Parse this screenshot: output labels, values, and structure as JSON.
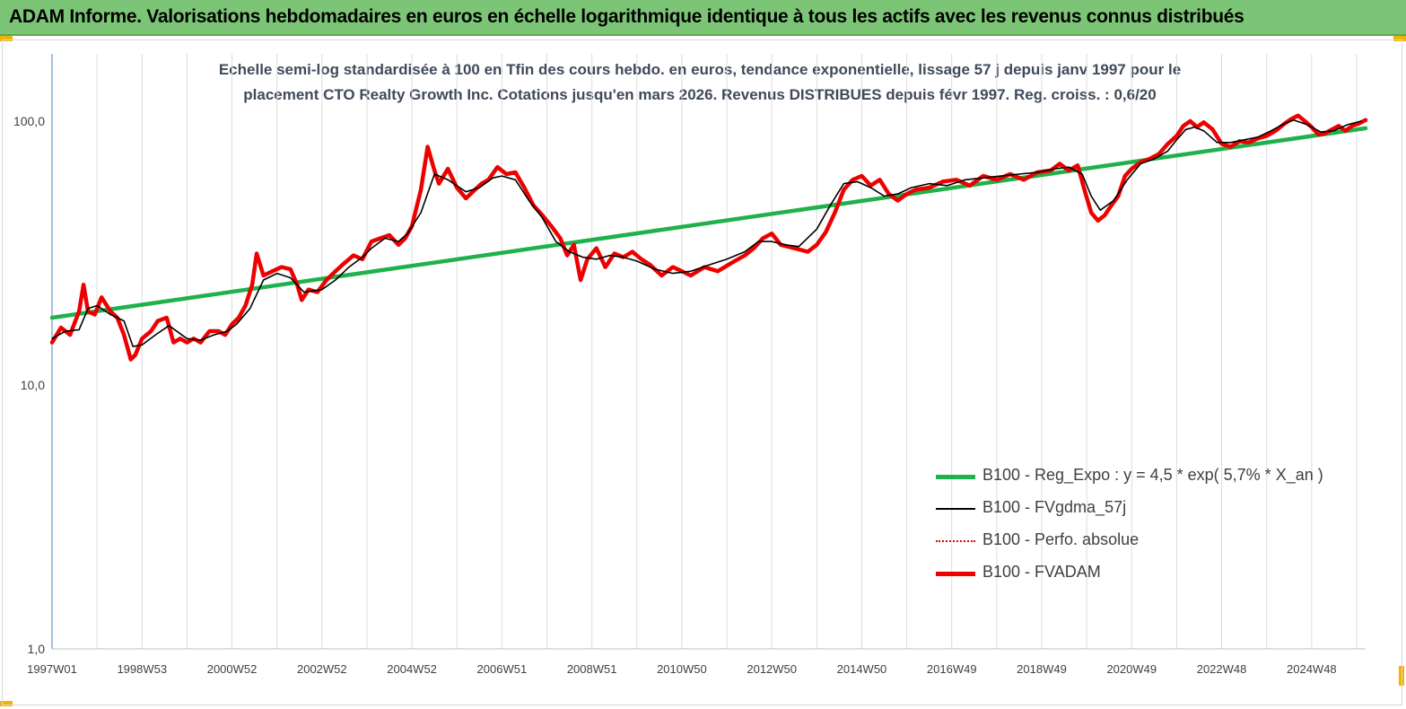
{
  "banner": {
    "title": "ADAM Informe. Valorisations hebdomadaires en euros en échelle logarithmique identique à tous les actifs avec les revenus connus distribués"
  },
  "chart_data": {
    "type": "line",
    "title_line1": "Echelle semi-log standardisée à 100 en Tfin des cours hebdo. en euros, tendance exponentielle, lissage 57 j depuis janv 1997 pour le",
    "title_line2": "placement CTO Realty Growth Inc. Cotations jusqu'en mars 2026. Revenus DISTRIBUES depuis févr 1997. Reg. croiss. : 0,6/20",
    "y_scale": "log",
    "ylim": [
      1,
      180
    ],
    "y_ticks": [
      1,
      10,
      100
    ],
    "y_tick_labels": [
      "1,0",
      "10,0",
      "100,0"
    ],
    "xlim": [
      1997.0,
      2026.2
    ],
    "x_tick_years": [
      1997.0,
      1999.0,
      2001.0,
      2003.0,
      2005.0,
      2007.0,
      2009.0,
      2011.0,
      2013.0,
      2015.0,
      2017.0,
      2019.0,
      2021.0,
      2023.0,
      2025.0
    ],
    "x_tick_labels": [
      "1997W01",
      "1998W53",
      "2000W52",
      "2002W52",
      "2004W52",
      "2006W51",
      "2008W51",
      "2010W50",
      "2012W50",
      "2014W50",
      "2016W49",
      "2018W49",
      "2020W49",
      "2022W48",
      "2024W48"
    ],
    "grid": "vertical",
    "legend_position": "bottom-right",
    "series": [
      {
        "name": "B100 - Reg_Expo : y = 4,5 * exp( 5,7% * X_an )",
        "color": "#1fb14b",
        "style": "thick",
        "x": [
          1997.0,
          2026.2
        ],
        "y": [
          18.0,
          94.0
        ]
      },
      {
        "name": "B100 - FVgdma_57j",
        "color": "#000000",
        "style": "thin",
        "x": [
          1997.0,
          1997.3,
          1997.6,
          1997.8,
          1998.0,
          1998.3,
          1998.6,
          1998.8,
          1999.0,
          1999.3,
          1999.6,
          2000.0,
          2000.3,
          2000.6,
          2000.9,
          2001.1,
          2001.4,
          2001.7,
          2002.0,
          2002.3,
          2002.6,
          2003.0,
          2003.3,
          2003.6,
          2003.9,
          2004.1,
          2004.4,
          2004.7,
          2004.9,
          2005.2,
          2005.5,
          2005.8,
          2006.2,
          2006.5,
          2006.8,
          2007.0,
          2007.3,
          2007.6,
          2007.9,
          2008.2,
          2008.5,
          2008.8,
          2009.1,
          2009.4,
          2009.7,
          2010.0,
          2010.4,
          2010.8,
          2011.2,
          2011.6,
          2012.0,
          2012.4,
          2012.7,
          2013.0,
          2013.3,
          2013.6,
          2014.0,
          2014.3,
          2014.6,
          2014.9,
          2015.2,
          2015.5,
          2015.8,
          2016.1,
          2016.5,
          2016.9,
          2017.3,
          2017.7,
          2018.1,
          2018.5,
          2018.9,
          2019.3,
          2019.6,
          2019.9,
          2020.1,
          2020.3,
          2020.6,
          2020.9,
          2021.2,
          2021.5,
          2021.8,
          2022.0,
          2022.2,
          2022.4,
          2022.6,
          2022.9,
          2023.2,
          2023.5,
          2023.8,
          2024.1,
          2024.4,
          2024.6,
          2024.9,
          2025.2,
          2025.5,
          2025.8,
          2026.1
        ],
        "y": [
          15.0,
          16.0,
          16.2,
          19.5,
          20.0,
          18.5,
          17.5,
          14.0,
          14.2,
          15.5,
          16.8,
          15.0,
          14.8,
          15.5,
          16.0,
          17.0,
          19.5,
          25.0,
          26.5,
          25.5,
          22.5,
          23.0,
          25.0,
          28.0,
          30.5,
          33.0,
          36.0,
          35.0,
          37.5,
          45.0,
          63.0,
          60.0,
          54.0,
          56.0,
          61.0,
          62.0,
          60.0,
          50.0,
          43.0,
          35.0,
          32.0,
          30.5,
          30.0,
          31.0,
          30.5,
          29.5,
          27.5,
          26.5,
          27.0,
          28.5,
          30.0,
          32.0,
          35.0,
          35.0,
          34.0,
          33.5,
          39.0,
          48.0,
          58.0,
          59.0,
          56.0,
          52.0,
          53.0,
          56.0,
          58.0,
          57.0,
          60.0,
          61.0,
          62.0,
          63.0,
          64.0,
          66.0,
          67.0,
          63.0,
          52.0,
          46.0,
          50.0,
          60.0,
          69.0,
          72.0,
          77.0,
          85.0,
          93.0,
          95.0,
          92.0,
          83.0,
          83.0,
          85.0,
          87.0,
          92.0,
          98.0,
          101.0,
          97.0,
          91.0,
          92.0,
          97.0,
          100.0
        ]
      },
      {
        "name": "B100 - Perfo. absolue",
        "color": "#e00000",
        "style": "dotted"
      },
      {
        "name": "B100 - FVADAM",
        "color": "#ee0000",
        "style": "thick",
        "x": [
          1997.0,
          1997.2,
          1997.4,
          1997.6,
          1997.7,
          1997.8,
          1997.95,
          1998.1,
          1998.3,
          1998.45,
          1998.6,
          1998.75,
          1998.85,
          1999.0,
          1999.2,
          1999.35,
          1999.55,
          1999.7,
          1999.85,
          2000.0,
          2000.15,
          2000.3,
          2000.5,
          2000.7,
          2000.85,
          2001.0,
          2001.15,
          2001.3,
          2001.45,
          2001.55,
          2001.7,
          2001.9,
          2002.1,
          2002.3,
          2002.45,
          2002.55,
          2002.7,
          2002.9,
          2003.1,
          2003.3,
          2003.5,
          2003.7,
          2003.9,
          2004.1,
          2004.3,
          2004.5,
          2004.7,
          2004.85,
          2005.0,
          2005.2,
          2005.35,
          2005.5,
          2005.6,
          2005.8,
          2006.0,
          2006.2,
          2006.4,
          2006.55,
          2006.7,
          2006.9,
          2007.1,
          2007.3,
          2007.5,
          2007.7,
          2007.9,
          2008.1,
          2008.3,
          2008.45,
          2008.6,
          2008.75,
          2008.9,
          2009.1,
          2009.3,
          2009.5,
          2009.7,
          2009.9,
          2010.1,
          2010.3,
          2010.55,
          2010.8,
          2011.0,
          2011.2,
          2011.5,
          2011.8,
          2012.1,
          2012.4,
          2012.6,
          2012.8,
          2013.0,
          2013.2,
          2013.5,
          2013.8,
          2014.0,
          2014.2,
          2014.4,
          2014.6,
          2014.8,
          2015.0,
          2015.2,
          2015.4,
          2015.6,
          2015.8,
          2016.0,
          2016.2,
          2016.5,
          2016.8,
          2017.1,
          2017.4,
          2017.7,
          2018.0,
          2018.3,
          2018.6,
          2018.9,
          2019.2,
          2019.4,
          2019.6,
          2019.8,
          2019.95,
          2020.1,
          2020.25,
          2020.4,
          2020.55,
          2020.7,
          2020.85,
          2021.0,
          2021.2,
          2021.4,
          2021.6,
          2021.8,
          2022.0,
          2022.15,
          2022.3,
          2022.45,
          2022.6,
          2022.8,
          2023.0,
          2023.2,
          2023.4,
          2023.6,
          2023.8,
          2024.0,
          2024.2,
          2024.4,
          2024.55,
          2024.7,
          2024.85,
          2025.0,
          2025.15,
          2025.3,
          2025.45,
          2025.6,
          2025.75,
          2025.9,
          2026.05,
          2026.2
        ],
        "y": [
          14.5,
          16.5,
          15.5,
          19.0,
          24.0,
          19.0,
          18.5,
          21.5,
          19.0,
          18.0,
          15.5,
          12.5,
          13.0,
          15.0,
          16.0,
          17.5,
          18.0,
          14.5,
          15.0,
          14.5,
          15.0,
          14.5,
          16.0,
          16.0,
          15.5,
          17.0,
          18.0,
          20.0,
          24.0,
          31.5,
          26.0,
          27.0,
          28.0,
          27.5,
          24.0,
          21.0,
          23.0,
          22.5,
          25.0,
          27.0,
          29.0,
          31.0,
          30.0,
          35.0,
          36.0,
          37.0,
          34.0,
          36.0,
          40.0,
          55.0,
          80.0,
          65.0,
          58.0,
          66.0,
          56.0,
          51.0,
          55.0,
          58.0,
          60.0,
          67.0,
          63.0,
          64.0,
          56.0,
          48.0,
          44.0,
          40.0,
          36.0,
          31.0,
          34.0,
          25.0,
          30.0,
          33.0,
          28.0,
          31.5,
          30.5,
          32.0,
          30.0,
          28.5,
          26.0,
          28.0,
          27.0,
          26.0,
          28.0,
          27.0,
          29.0,
          31.0,
          33.0,
          36.0,
          37.5,
          34.0,
          33.0,
          32.0,
          34.0,
          38.0,
          45.0,
          55.0,
          60.0,
          62.0,
          57.0,
          60.0,
          53.0,
          50.0,
          53.0,
          55.0,
          56.0,
          59.0,
          60.0,
          57.0,
          62.0,
          60.0,
          63.0,
          60.0,
          64.0,
          65.0,
          69.0,
          65.0,
          68.0,
          55.0,
          45.0,
          42.0,
          44.0,
          48.0,
          52.0,
          62.0,
          66.0,
          70.0,
          72.0,
          75.0,
          82.0,
          88.0,
          96.0,
          100.0,
          95.0,
          99.0,
          93.0,
          82.0,
          80.0,
          84.0,
          83.0,
          86.0,
          88.0,
          92.0,
          98.0,
          102.0,
          105.0,
          100.0,
          95.0,
          89.0,
          90.0,
          93.0,
          96.0,
          92.0,
          96.0,
          98.0,
          101.0
        ]
      }
    ]
  }
}
